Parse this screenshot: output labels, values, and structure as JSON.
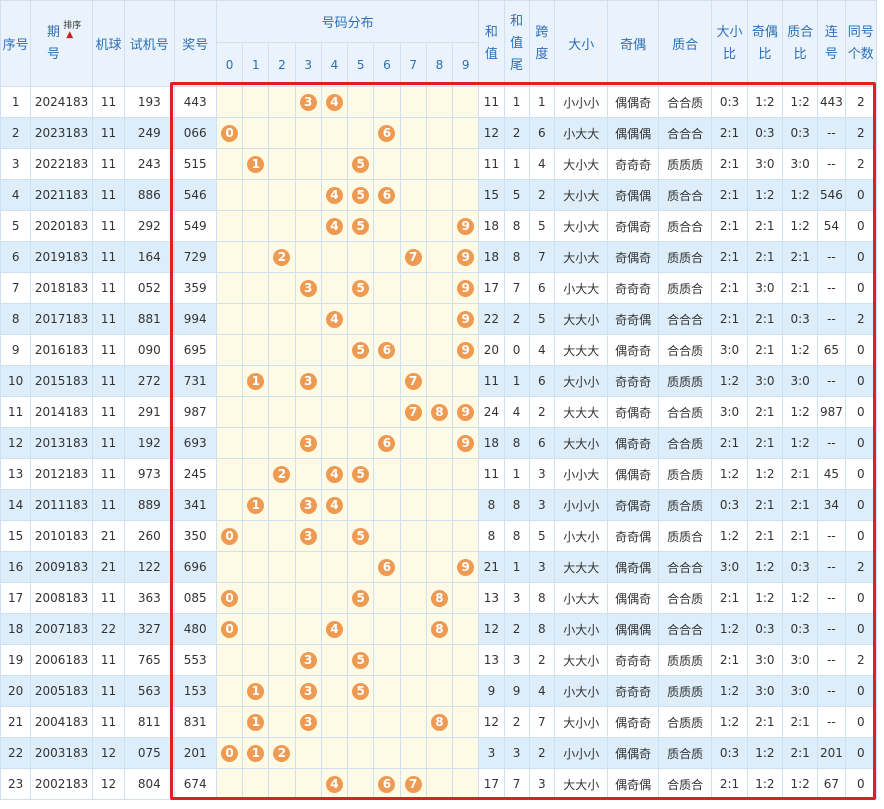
{
  "headers": {
    "seq": "序号",
    "period": "期\n号",
    "sort": "排序",
    "machine": "机球",
    "trial": "试机号",
    "prize": "奖号",
    "distribution": "号码分布",
    "digits": [
      "0",
      "1",
      "2",
      "3",
      "4",
      "5",
      "6",
      "7",
      "8",
      "9"
    ],
    "sum": "和\n值",
    "sum_tail": "和\n值\n尾",
    "span": "跨\n度",
    "size": "大小",
    "parity": "奇偶",
    "prime": "质合",
    "size_ratio": "大小\n比",
    "parity_ratio": "奇偶\n比",
    "prime_ratio": "质合\n比",
    "consecutive": "连\n号",
    "same_count": "同号\n个数"
  },
  "colors": {
    "ball": "#ee9a52",
    "header_text": "#2d6fb5",
    "highlight_border": "#e02020",
    "row_alt": "#ddeefa"
  },
  "rows": [
    {
      "seq": "1",
      "period": "2024183",
      "machine": "11",
      "trial": "193",
      "prize": "443",
      "balls": [
        3,
        4
      ],
      "sum": "11",
      "tail": "1",
      "span": "1",
      "size": "小小小",
      "parity": "偶偶奇",
      "prime": "合合质",
      "sr": "0:3",
      "pr": "1:2",
      "qr": "1:2",
      "consec": "443",
      "same": "2"
    },
    {
      "seq": "2",
      "period": "2023183",
      "machine": "11",
      "trial": "249",
      "prize": "066",
      "balls": [
        0,
        6
      ],
      "sum": "12",
      "tail": "2",
      "span": "6",
      "size": "小大大",
      "parity": "偶偶偶",
      "prime": "合合合",
      "sr": "2:1",
      "pr": "0:3",
      "qr": "0:3",
      "consec": "--",
      "same": "2"
    },
    {
      "seq": "3",
      "period": "2022183",
      "machine": "11",
      "trial": "243",
      "prize": "515",
      "balls": [
        1,
        5
      ],
      "sum": "11",
      "tail": "1",
      "span": "4",
      "size": "大小大",
      "parity": "奇奇奇",
      "prime": "质质质",
      "sr": "2:1",
      "pr": "3:0",
      "qr": "3:0",
      "consec": "--",
      "same": "2"
    },
    {
      "seq": "4",
      "period": "2021183",
      "machine": "11",
      "trial": "886",
      "prize": "546",
      "balls": [
        4,
        5,
        6
      ],
      "sum": "15",
      "tail": "5",
      "span": "2",
      "size": "大小大",
      "parity": "奇偶偶",
      "prime": "质合合",
      "sr": "2:1",
      "pr": "1:2",
      "qr": "1:2",
      "consec": "546",
      "same": "0"
    },
    {
      "seq": "5",
      "period": "2020183",
      "machine": "11",
      "trial": "292",
      "prize": "549",
      "balls": [
        4,
        5,
        9
      ],
      "sum": "18",
      "tail": "8",
      "span": "5",
      "size": "大小大",
      "parity": "奇偶奇",
      "prime": "质合合",
      "sr": "2:1",
      "pr": "2:1",
      "qr": "1:2",
      "consec": "54",
      "same": "0"
    },
    {
      "seq": "6",
      "period": "2019183",
      "machine": "11",
      "trial": "164",
      "prize": "729",
      "balls": [
        2,
        7,
        9
      ],
      "sum": "18",
      "tail": "8",
      "span": "7",
      "size": "大小大",
      "parity": "奇偶奇",
      "prime": "质质合",
      "sr": "2:1",
      "pr": "2:1",
      "qr": "2:1",
      "consec": "--",
      "same": "0"
    },
    {
      "seq": "7",
      "period": "2018183",
      "machine": "11",
      "trial": "052",
      "prize": "359",
      "balls": [
        3,
        5,
        9
      ],
      "sum": "17",
      "tail": "7",
      "span": "6",
      "size": "小大大",
      "parity": "奇奇奇",
      "prime": "质质合",
      "sr": "2:1",
      "pr": "3:0",
      "qr": "2:1",
      "consec": "--",
      "same": "0"
    },
    {
      "seq": "8",
      "period": "2017183",
      "machine": "11",
      "trial": "881",
      "prize": "994",
      "balls": [
        4,
        9
      ],
      "sum": "22",
      "tail": "2",
      "span": "5",
      "size": "大大小",
      "parity": "奇奇偶",
      "prime": "合合合",
      "sr": "2:1",
      "pr": "2:1",
      "qr": "0:3",
      "consec": "--",
      "same": "2"
    },
    {
      "seq": "9",
      "period": "2016183",
      "machine": "11",
      "trial": "090",
      "prize": "695",
      "balls": [
        5,
        6,
        9
      ],
      "sum": "20",
      "tail": "0",
      "span": "4",
      "size": "大大大",
      "parity": "偶奇奇",
      "prime": "合合质",
      "sr": "3:0",
      "pr": "2:1",
      "qr": "1:2",
      "consec": "65",
      "same": "0"
    },
    {
      "seq": "10",
      "period": "2015183",
      "machine": "11",
      "trial": "272",
      "prize": "731",
      "balls": [
        1,
        3,
        7
      ],
      "sum": "11",
      "tail": "1",
      "span": "6",
      "size": "大小小",
      "parity": "奇奇奇",
      "prime": "质质质",
      "sr": "1:2",
      "pr": "3:0",
      "qr": "3:0",
      "consec": "--",
      "same": "0"
    },
    {
      "seq": "11",
      "period": "2014183",
      "machine": "11",
      "trial": "291",
      "prize": "987",
      "balls": [
        7,
        8,
        9
      ],
      "sum": "24",
      "tail": "4",
      "span": "2",
      "size": "大大大",
      "parity": "奇偶奇",
      "prime": "合合质",
      "sr": "3:0",
      "pr": "2:1",
      "qr": "1:2",
      "consec": "987",
      "same": "0"
    },
    {
      "seq": "12",
      "period": "2013183",
      "machine": "11",
      "trial": "192",
      "prize": "693",
      "balls": [
        3,
        6,
        9
      ],
      "sum": "18",
      "tail": "8",
      "span": "6",
      "size": "大大小",
      "parity": "偶奇奇",
      "prime": "合合质",
      "sr": "2:1",
      "pr": "2:1",
      "qr": "1:2",
      "consec": "--",
      "same": "0"
    },
    {
      "seq": "13",
      "period": "2012183",
      "machine": "11",
      "trial": "973",
      "prize": "245",
      "balls": [
        2,
        4,
        5
      ],
      "sum": "11",
      "tail": "1",
      "span": "3",
      "size": "小小大",
      "parity": "偶偶奇",
      "prime": "质合质",
      "sr": "1:2",
      "pr": "1:2",
      "qr": "2:1",
      "consec": "45",
      "same": "0"
    },
    {
      "seq": "14",
      "period": "2011183",
      "machine": "11",
      "trial": "889",
      "prize": "341",
      "balls": [
        1,
        3,
        4
      ],
      "sum": "8",
      "tail": "8",
      "span": "3",
      "size": "小小小",
      "parity": "奇偶奇",
      "prime": "质合质",
      "sr": "0:3",
      "pr": "2:1",
      "qr": "2:1",
      "consec": "34",
      "same": "0"
    },
    {
      "seq": "15",
      "period": "2010183",
      "machine": "21",
      "trial": "260",
      "prize": "350",
      "balls": [
        0,
        3,
        5
      ],
      "sum": "8",
      "tail": "8",
      "span": "5",
      "size": "小大小",
      "parity": "奇奇偶",
      "prime": "质质合",
      "sr": "1:2",
      "pr": "2:1",
      "qr": "2:1",
      "consec": "--",
      "same": "0"
    },
    {
      "seq": "16",
      "period": "2009183",
      "machine": "21",
      "trial": "122",
      "prize": "696",
      "balls": [
        6,
        9
      ],
      "sum": "21",
      "tail": "1",
      "span": "3",
      "size": "大大大",
      "parity": "偶奇偶",
      "prime": "合合合",
      "sr": "3:0",
      "pr": "1:2",
      "qr": "0:3",
      "consec": "--",
      "same": "2"
    },
    {
      "seq": "17",
      "period": "2008183",
      "machine": "11",
      "trial": "363",
      "prize": "085",
      "balls": [
        0,
        5,
        8
      ],
      "sum": "13",
      "tail": "3",
      "span": "8",
      "size": "小大大",
      "parity": "偶偶奇",
      "prime": "合合质",
      "sr": "2:1",
      "pr": "1:2",
      "qr": "1:2",
      "consec": "--",
      "same": "0"
    },
    {
      "seq": "18",
      "period": "2007183",
      "machine": "22",
      "trial": "327",
      "prize": "480",
      "balls": [
        0,
        4,
        8
      ],
      "sum": "12",
      "tail": "2",
      "span": "8",
      "size": "小大小",
      "parity": "偶偶偶",
      "prime": "合合合",
      "sr": "1:2",
      "pr": "0:3",
      "qr": "0:3",
      "consec": "--",
      "same": "0"
    },
    {
      "seq": "19",
      "period": "2006183",
      "machine": "11",
      "trial": "765",
      "prize": "553",
      "balls": [
        3,
        5
      ],
      "sum": "13",
      "tail": "3",
      "span": "2",
      "size": "大大小",
      "parity": "奇奇奇",
      "prime": "质质质",
      "sr": "2:1",
      "pr": "3:0",
      "qr": "3:0",
      "consec": "--",
      "same": "2"
    },
    {
      "seq": "20",
      "period": "2005183",
      "machine": "11",
      "trial": "563",
      "prize": "153",
      "balls": [
        1,
        3,
        5
      ],
      "sum": "9",
      "tail": "9",
      "span": "4",
      "size": "小大小",
      "parity": "奇奇奇",
      "prime": "质质质",
      "sr": "1:2",
      "pr": "3:0",
      "qr": "3:0",
      "consec": "--",
      "same": "0"
    },
    {
      "seq": "21",
      "period": "2004183",
      "machine": "11",
      "trial": "811",
      "prize": "831",
      "balls": [
        1,
        3,
        8
      ],
      "sum": "12",
      "tail": "2",
      "span": "7",
      "size": "大小小",
      "parity": "偶奇奇",
      "prime": "合质质",
      "sr": "1:2",
      "pr": "2:1",
      "qr": "2:1",
      "consec": "--",
      "same": "0"
    },
    {
      "seq": "22",
      "period": "2003183",
      "machine": "12",
      "trial": "075",
      "prize": "201",
      "balls": [
        0,
        1,
        2
      ],
      "sum": "3",
      "tail": "3",
      "span": "2",
      "size": "小小小",
      "parity": "偶偶奇",
      "prime": "质合质",
      "sr": "0:3",
      "pr": "1:2",
      "qr": "2:1",
      "consec": "201",
      "same": "0"
    },
    {
      "seq": "23",
      "period": "2002183",
      "machine": "12",
      "trial": "804",
      "prize": "674",
      "balls": [
        4,
        6,
        7
      ],
      "sum": "17",
      "tail": "7",
      "span": "3",
      "size": "大大小",
      "parity": "偶奇偶",
      "prime": "合质合",
      "sr": "2:1",
      "pr": "1:2",
      "qr": "1:2",
      "consec": "67",
      "same": "0"
    }
  ]
}
